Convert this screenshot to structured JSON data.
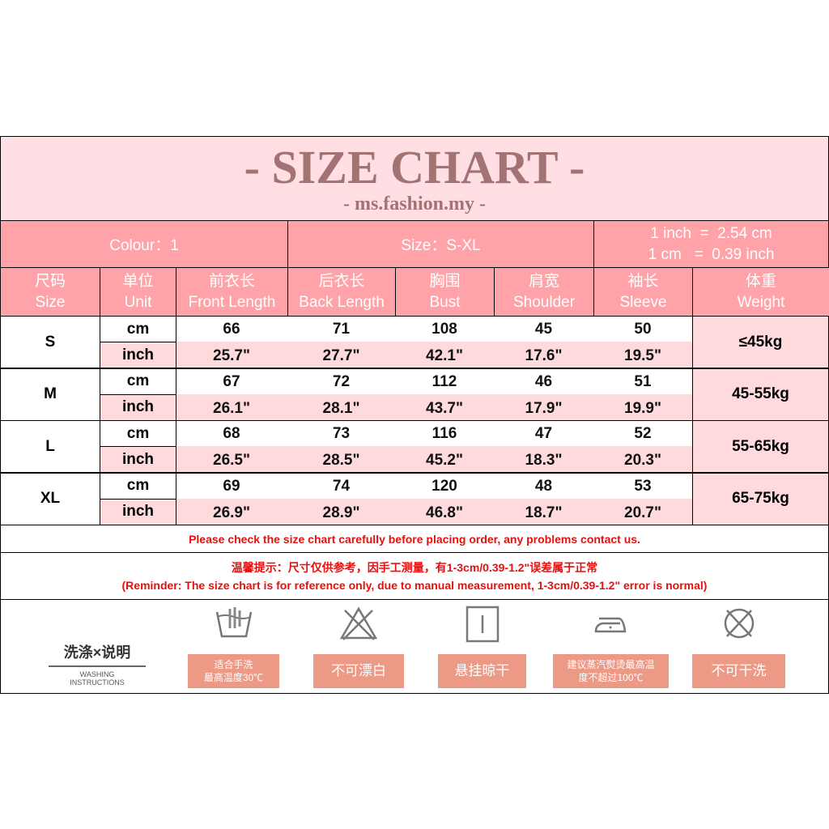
{
  "title": "- SIZE CHART -",
  "subtitle": "- ms.fashion.my -",
  "info": {
    "colour": "Colour：1",
    "size": "Size：S-XL",
    "conv1": "1 inch  =  2.54 cm",
    "conv2": "1 cm   =  0.39 inch"
  },
  "headers": [
    {
      "zh": "尺码",
      "en": "Size"
    },
    {
      "zh": "单位",
      "en": "Unit"
    },
    {
      "zh": "前衣长",
      "en": "Front Length"
    },
    {
      "zh": "后衣长",
      "en": "Back Length"
    },
    {
      "zh": "胸围",
      "en": "Bust"
    },
    {
      "zh": "肩宽",
      "en": "Shoulder"
    },
    {
      "zh": "袖长",
      "en": "Sleeve"
    },
    {
      "zh": "体重",
      "en": "Weight"
    }
  ],
  "units": {
    "cm": "cm",
    "inch": "inch"
  },
  "rows": [
    {
      "size": "S",
      "cm": [
        "66",
        "71",
        "108",
        "45",
        "50"
      ],
      "inch": [
        "25.7\"",
        "27.7\"",
        "42.1\"",
        "17.6\"",
        "19.5\""
      ],
      "weight": "≤45kg"
    },
    {
      "size": "M",
      "cm": [
        "67",
        "72",
        "112",
        "46",
        "51"
      ],
      "inch": [
        "26.1\"",
        "28.1\"",
        "43.7\"",
        "17.9\"",
        "19.9\""
      ],
      "weight": "45-55kg"
    },
    {
      "size": "L",
      "cm": [
        "68",
        "73",
        "116",
        "47",
        "52"
      ],
      "inch": [
        "26.5\"",
        "28.5\"",
        "45.2\"",
        "18.3\"",
        "20.3\""
      ],
      "weight": "55-65kg"
    },
    {
      "size": "XL",
      "cm": [
        "69",
        "74",
        "120",
        "48",
        "53"
      ],
      "inch": [
        "26.9\"",
        "28.9\"",
        "46.8\"",
        "18.7\"",
        "20.7\""
      ],
      "weight": "65-75kg"
    }
  ],
  "notice": "Please check the size chart carefully before placing order, any problems contact us.",
  "reminder_zh": "温馨提示：尺寸仅供参考，因手工测量，有1-3cm/0.39-1.2\"误差属于正常",
  "reminder_en": "(Reminder: The size chart is for reference only, due to manual measurement, 1-3cm/0.39-1.2\" error is normal)",
  "washing": {
    "title_zh": "洗涤×说明",
    "title_en1": "WASHING",
    "title_en2": "INSTRUCTIONS",
    "items": [
      {
        "icon": "hand-wash-icon",
        "l1": "适合手洗",
        "l2": "最高温度30℃"
      },
      {
        "icon": "no-bleach-icon",
        "l1": "不可漂白",
        "l2": ""
      },
      {
        "icon": "hang-dry-icon",
        "l1": "悬挂晾干",
        "l2": ""
      },
      {
        "icon": "iron-icon",
        "l1": "建议蒸汽熨烫最高温",
        "l2": "度不超过100℃"
      },
      {
        "icon": "no-dry-clean-icon",
        "l1": "不可干洗",
        "l2": ""
      }
    ]
  },
  "colors": {
    "header": "#ffa3a9",
    "light": "#ffdadd",
    "title": "#a37373",
    "red": "#e8100e",
    "wash": "#ec9a86"
  }
}
